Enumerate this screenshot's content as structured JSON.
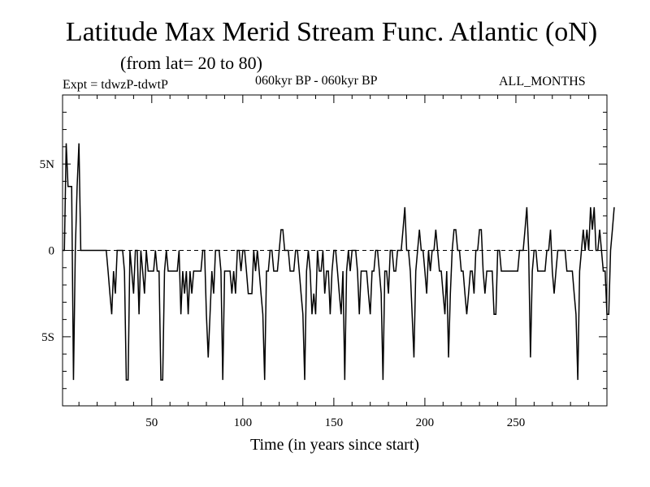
{
  "header": {
    "title": "Latitude Max Merid Stream Func. Atlantic (oN)",
    "subtitle": "(from lat= 20 to 80)",
    "expt": "Expt = tdwzP-tdwtP",
    "period": "060kyr BP - 060kyr BP",
    "months": "ALL_MONTHS"
  },
  "chart_data": {
    "type": "line",
    "xlabel": "Time (in years since start)",
    "ylabel": "",
    "xlim": [
      1,
      300
    ],
    "ylim": [
      -9,
      9
    ],
    "x_ticks": [
      {
        "value": 50,
        "label": "50"
      },
      {
        "value": 100,
        "label": "100"
      },
      {
        "value": 150,
        "label": "150"
      },
      {
        "value": 200,
        "label": "200"
      },
      {
        "value": 250,
        "label": "250"
      }
    ],
    "y_ticks": [
      {
        "value": 5,
        "label": "5N"
      },
      {
        "value": 0,
        "label": "0"
      },
      {
        "value": -5,
        "label": "5S"
      }
    ],
    "zero_line": true,
    "series": [
      {
        "color": "#000000",
        "x_start": 1,
        "x_step": 1,
        "values": [
          0,
          0,
          6.2,
          3.7,
          3.7,
          3.7,
          -7.5,
          0,
          3.7,
          6.2,
          0,
          0,
          0,
          0,
          0,
          0,
          0,
          0,
          0,
          0,
          0,
          0,
          0,
          0,
          0,
          -1.2,
          -2.5,
          -3.7,
          -1.2,
          -2.5,
          0,
          0,
          0,
          0,
          -1.2,
          -7.5,
          -7.5,
          0,
          -1.2,
          -2.5,
          0,
          0,
          -3.7,
          0,
          -1.2,
          -2.5,
          0,
          -1.2,
          -1.2,
          -1.2,
          -1.2,
          0,
          -1.2,
          -1.2,
          -7.5,
          -7.5,
          -1.2,
          0,
          -1.2,
          -1.2,
          -1.2,
          -1.2,
          -1.2,
          -1.2,
          0,
          -3.7,
          -1.2,
          -2.5,
          -1.2,
          -3.7,
          -1.2,
          -2.5,
          -1.2,
          -1.2,
          -1.2,
          -1.2,
          -1.2,
          0,
          0,
          -3.7,
          -6.2,
          -3.7,
          -1.2,
          -2.5,
          0,
          0,
          0,
          -1.2,
          -7.5,
          -1.2,
          -1.2,
          -1.2,
          -1.2,
          -2.5,
          -1.2,
          -2.5,
          0,
          0,
          -1.2,
          0,
          0,
          -1.2,
          -2.5,
          -2.5,
          -2.5,
          0,
          -1.2,
          0,
          -1.2,
          -2.5,
          -3.7,
          -7.5,
          -1.2,
          -1.2,
          0,
          0,
          -1.2,
          -1.2,
          -1.2,
          0,
          1.2,
          1.2,
          0,
          0,
          0,
          -1.2,
          -1.2,
          -1.2,
          0,
          0,
          -1.2,
          -2.5,
          -3.7,
          -7.5,
          -1.2,
          0,
          -1.2,
          -3.7,
          -2.5,
          -3.7,
          0,
          -1.2,
          -1.2,
          0,
          -2.5,
          -1.2,
          -1.2,
          -3.7,
          -1.2,
          0,
          0,
          -1.2,
          -2.5,
          -3.7,
          -1.2,
          -7.5,
          -1.2,
          0,
          -1.2,
          0,
          0,
          0,
          -1.2,
          -3.7,
          -1.2,
          -1.2,
          -1.2,
          -1.2,
          -2.5,
          -3.7,
          -1.2,
          -1.2,
          0,
          0,
          -1.2,
          -2.5,
          -7.5,
          -1.2,
          -1.2,
          -2.5,
          0,
          0,
          -1.2,
          -1.2,
          0,
          0,
          0,
          1.2,
          2.5,
          0,
          0,
          -1.2,
          -3.7,
          -6.2,
          -1.2,
          0,
          1.2,
          0,
          0,
          -1.2,
          -2.5,
          0,
          -1.2,
          0,
          0,
          1.2,
          0,
          -1.2,
          -1.2,
          -2.5,
          -3.7,
          -1.2,
          -6.2,
          -2.5,
          0,
          1.2,
          1.2,
          0,
          0,
          -1.2,
          -1.2,
          -2.5,
          -3.7,
          -2.5,
          -1.2,
          -1.2,
          -2.5,
          0,
          0,
          1.2,
          1.2,
          -1.2,
          -2.5,
          -1.2,
          -1.2,
          -1.2,
          -1.2,
          -3.7,
          -3.7,
          0,
          0,
          -1.2,
          -1.2,
          -1.2,
          -1.2,
          -1.2,
          -1.2,
          -1.2,
          -1.2,
          -1.2,
          -1.2,
          0,
          0,
          0,
          1.2,
          2.5,
          0,
          -6.2,
          -1.2,
          0,
          0,
          -1.2,
          -1.2,
          -1.2,
          -1.2,
          -1.2,
          0,
          0,
          1.2,
          -1.2,
          -2.5,
          -1.2,
          0,
          0,
          0,
          0,
          0,
          -1.2,
          -1.2,
          -1.2,
          -1.2,
          -2.5,
          -3.7,
          -7.5,
          -1.2,
          0,
          1.2,
          0,
          1.2,
          0,
          2.5,
          1.2,
          2.5,
          0,
          0,
          1.2,
          0,
          -1.2,
          -1.2,
          -3.7,
          -3.7,
          0,
          1.2,
          2.5
        ]
      }
    ]
  }
}
